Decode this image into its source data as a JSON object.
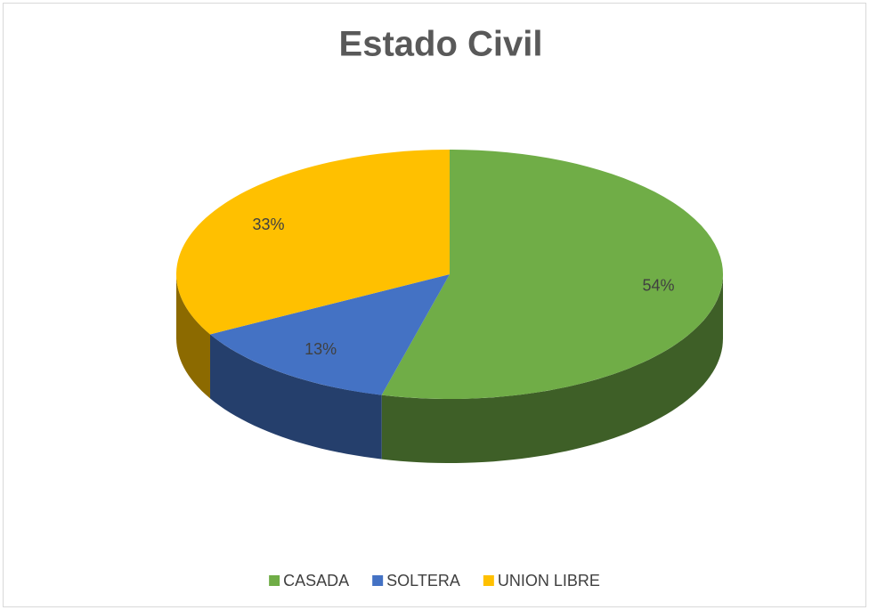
{
  "chart_data": {
    "type": "pie",
    "title": "Estado Civil",
    "categories": [
      "CASADA",
      "SOLTERA",
      "UNION LIBRE"
    ],
    "values": [
      54,
      13,
      33
    ],
    "value_labels": [
      "54%",
      "13%",
      "33%"
    ],
    "colors": [
      "#70ad47",
      "#4472c4",
      "#ffc000"
    ],
    "legend": "bottom"
  }
}
